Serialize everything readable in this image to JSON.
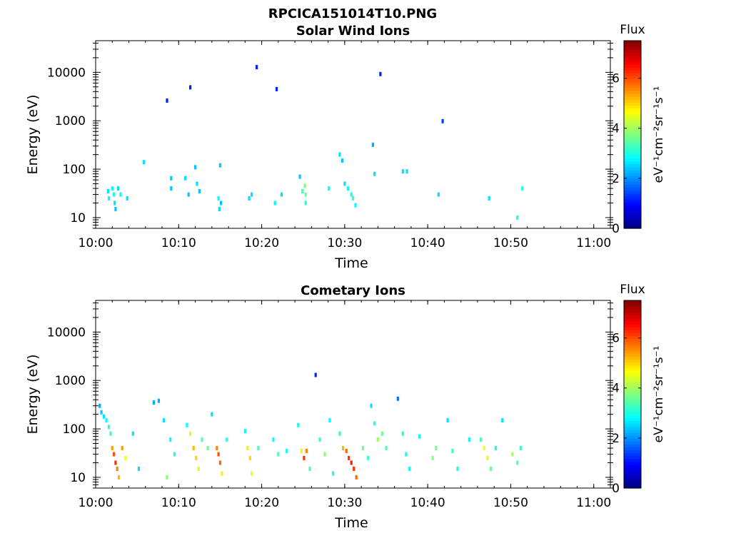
{
  "figure": {
    "title": "RPCICA151014T10.PNG"
  },
  "chart_data": [
    {
      "type": "heatmap",
      "title": "Solar Wind Ions",
      "xlabel": "Time",
      "ylabel": "Energy (eV)",
      "y_scale": "log",
      "xlim": [
        "10:00",
        "11:02"
      ],
      "ylim": [
        6,
        45000
      ],
      "x_ticks": [
        "10:00",
        "10:10",
        "10:20",
        "10:30",
        "10:40",
        "10:50",
        "11:00"
      ],
      "y_ticks": [
        10,
        100,
        1000,
        10000
      ],
      "y_tick_labels": [
        "10",
        "100",
        "1000",
        "10000"
      ],
      "colorbar": {
        "label": "eV⁻¹cm⁻²sr⁻¹s⁻¹",
        "title": "Flux",
        "range": [
          0,
          7.5
        ],
        "ticks": [
          0,
          2,
          4,
          6
        ],
        "tick_labels": [
          "0",
          "2",
          "4",
          "6"
        ],
        "colormap": "jet"
      },
      "cells": [
        [
          "10:01.5",
          35,
          2.6
        ],
        [
          "10:01.6",
          25,
          2.8
        ],
        [
          "10:02.0",
          40,
          2.8
        ],
        [
          "10:02.2",
          30,
          3.0
        ],
        [
          "10:02.3",
          20,
          2.6
        ],
        [
          "10:02.4",
          15,
          2.4
        ],
        [
          "10:02.7",
          40,
          2.6
        ],
        [
          "10:03.0",
          30,
          2.8
        ],
        [
          "10:03.8",
          25,
          2.6
        ],
        [
          "10:05.8",
          140,
          2.6
        ],
        [
          "10:08.6",
          2600,
          1.2
        ],
        [
          "10:09.1",
          65,
          2.4
        ],
        [
          "10:09.1",
          40,
          2.4
        ],
        [
          "10:10.8",
          65,
          2.6
        ],
        [
          "10:11.2",
          30,
          2.4
        ],
        [
          "10:11.4",
          4900,
          1.2
        ],
        [
          "10:12.0",
          110,
          2.4
        ],
        [
          "10:12.2",
          50,
          2.6
        ],
        [
          "10:12.5",
          35,
          2.4
        ],
        [
          "10:14.8",
          25,
          2.8
        ],
        [
          "10:14.9",
          15,
          2.6
        ],
        [
          "10:15.0",
          120,
          2.4
        ],
        [
          "10:15.1",
          20,
          2.4
        ],
        [
          "10:18.5",
          25,
          2.6
        ],
        [
          "10:18.8",
          30,
          2.6
        ],
        [
          "10:19.4",
          12800,
          1.2
        ],
        [
          "10:21.6",
          20,
          2.8
        ],
        [
          "10:21.8",
          4500,
          1.2
        ],
        [
          "10:22.4",
          30,
          2.6
        ],
        [
          "10:24.6",
          70,
          2.4
        ],
        [
          "10:24.9",
          35,
          3.4
        ],
        [
          "10:25.2",
          45,
          3.8
        ],
        [
          "10:25.3",
          30,
          3.6
        ],
        [
          "10:25.3",
          20,
          3.0
        ],
        [
          "10:28.1",
          40,
          2.8
        ],
        [
          "10:29.4",
          200,
          2.6
        ],
        [
          "10:29.7",
          150,
          2.4
        ],
        [
          "10:30.0",
          50,
          2.6
        ],
        [
          "10:30.4",
          40,
          2.8
        ],
        [
          "10:30.8",
          30,
          3.0
        ],
        [
          "10:31.0",
          25,
          3.2
        ],
        [
          "10:31.3",
          18,
          2.8
        ],
        [
          "10:33.4",
          320,
          2.2
        ],
        [
          "10:33.6",
          80,
          2.6
        ],
        [
          "10:34.3",
          9200,
          1.2
        ],
        [
          "10:37.0",
          90,
          2.6
        ],
        [
          "10:37.5",
          90,
          2.6
        ],
        [
          "10:41.3",
          30,
          2.6
        ],
        [
          "10:41.8",
          980,
          1.4
        ],
        [
          "10:47.4",
          25,
          2.6
        ],
        [
          "10:50.8",
          10,
          3.0
        ],
        [
          "10:51.4",
          40,
          3.0
        ]
      ]
    },
    {
      "type": "heatmap",
      "title": "Cometary Ions",
      "xlabel": "Time",
      "ylabel": "Energy (eV)",
      "y_scale": "log",
      "xlim": [
        "10:00",
        "11:02"
      ],
      "ylim": [
        6,
        45000
      ],
      "x_ticks": [
        "10:00",
        "10:10",
        "10:20",
        "10:30",
        "10:40",
        "10:50",
        "11:00"
      ],
      "y_ticks": [
        10,
        100,
        1000,
        10000
      ],
      "y_tick_labels": [
        "10",
        "100",
        "1000",
        "10000"
      ],
      "colorbar": {
        "label": "eV⁻¹cm⁻²sr⁻¹s⁻¹",
        "title": "Flux",
        "range": [
          0,
          7.5
        ],
        "ticks": [
          0,
          2,
          4,
          6
        ],
        "tick_labels": [
          "0",
          "2",
          "4",
          "6"
        ],
        "colormap": "jet"
      },
      "cells": [
        [
          "10:00.5",
          300,
          2.2
        ],
        [
          "10:00.7",
          220,
          2.4
        ],
        [
          "10:01.0",
          180,
          2.6
        ],
        [
          "10:01.3",
          150,
          2.8
        ],
        [
          "10:01.6",
          110,
          3.0
        ],
        [
          "10:01.8",
          80,
          3.2
        ],
        [
          "10:02.0",
          40,
          5.4
        ],
        [
          "10:02.2",
          30,
          6.0
        ],
        [
          "10:02.4",
          20,
          6.2
        ],
        [
          "10:02.6",
          15,
          5.6
        ],
        [
          "10:02.8",
          10,
          5.2
        ],
        [
          "10:03.2",
          40,
          5.4
        ],
        [
          "10:03.6",
          25,
          4.6
        ],
        [
          "10:04.5",
          80,
          2.6
        ],
        [
          "10:05.2",
          15,
          2.6
        ],
        [
          "10:07.0",
          350,
          2.2
        ],
        [
          "10:07.6",
          380,
          2.2
        ],
        [
          "10:08.2",
          150,
          2.6
        ],
        [
          "10:08.6",
          10,
          3.8
        ],
        [
          "10:09.0",
          60,
          2.8
        ],
        [
          "10:09.5",
          30,
          3.0
        ],
        [
          "10:11.0",
          120,
          2.8
        ],
        [
          "10:11.4",
          80,
          4.4
        ],
        [
          "10:11.8",
          40,
          5.2
        ],
        [
          "10:12.1",
          25,
          5.0
        ],
        [
          "10:12.4",
          15,
          4.4
        ],
        [
          "10:12.8",
          60,
          3.4
        ],
        [
          "10:13.5",
          40,
          3.6
        ],
        [
          "10:14.0",
          200,
          2.6
        ],
        [
          "10:14.6",
          40,
          5.6
        ],
        [
          "10:14.8",
          30,
          6.0
        ],
        [
          "10:15.0",
          20,
          5.8
        ],
        [
          "10:15.2",
          12,
          4.8
        ],
        [
          "10:15.8",
          60,
          3.2
        ],
        [
          "10:18.0",
          90,
          2.8
        ],
        [
          "10:18.3",
          40,
          4.8
        ],
        [
          "10:18.6",
          25,
          5.0
        ],
        [
          "10:18.8",
          12,
          4.6
        ],
        [
          "10:19.6",
          40,
          3.4
        ],
        [
          "10:21.4",
          60,
          2.8
        ],
        [
          "10:22.0",
          30,
          3.4
        ],
        [
          "10:23.0",
          35,
          3.0
        ],
        [
          "10:24.4",
          120,
          3.0
        ],
        [
          "10:24.8",
          35,
          4.8
        ],
        [
          "10:25.1",
          25,
          6.2
        ],
        [
          "10:25.4",
          35,
          5.6
        ],
        [
          "10:25.8",
          15,
          3.4
        ],
        [
          "10:27.0",
          60,
          3.2
        ],
        [
          "10:27.6",
          30,
          3.8
        ],
        [
          "10:28.2",
          150,
          2.8
        ],
        [
          "10:28.6",
          12,
          3.0
        ],
        [
          "10:29.4",
          80,
          3.2
        ],
        [
          "10:29.8",
          40,
          5.2
        ],
        [
          "10:30.2",
          35,
          5.8
        ],
        [
          "10:30.5",
          25,
          6.2
        ],
        [
          "10:30.8",
          20,
          6.4
        ],
        [
          "10:31.1",
          15,
          6.2
        ],
        [
          "10:31.4",
          10,
          5.8
        ],
        [
          "10:32.2",
          40,
          3.6
        ],
        [
          "10:32.8",
          25,
          3.2
        ],
        [
          "10:33.2",
          300,
          2.6
        ],
        [
          "10:33.6",
          130,
          3.0
        ],
        [
          "10:34.0",
          60,
          4.0
        ],
        [
          "10:34.5",
          80,
          3.6
        ],
        [
          "10:35.0",
          40,
          3.4
        ],
        [
          "10:36.4",
          420,
          1.8
        ],
        [
          "10:37.0",
          80,
          3.0
        ],
        [
          "10:37.4",
          30,
          3.0
        ],
        [
          "10:37.8",
          15,
          3.0
        ],
        [
          "10:39.0",
          70,
          2.8
        ],
        [
          "10:40.6",
          25,
          3.8
        ],
        [
          "10:41.0",
          40,
          3.6
        ],
        [
          "10:42.4",
          150,
          2.6
        ],
        [
          "10:43.0",
          35,
          3.2
        ],
        [
          "10:43.6",
          15,
          3.0
        ],
        [
          "10:45.0",
          60,
          2.8
        ],
        [
          "10:46.4",
          60,
          3.4
        ],
        [
          "10:46.8",
          40,
          4.6
        ],
        [
          "10:47.2",
          25,
          4.4
        ],
        [
          "10:47.6",
          15,
          3.6
        ],
        [
          "10:48.2",
          40,
          3.0
        ],
        [
          "10:49.0",
          150,
          2.6
        ],
        [
          "10:50.2",
          30,
          4.0
        ],
        [
          "10:50.8",
          20,
          3.4
        ],
        [
          "10:51.2",
          40,
          3.2
        ],
        [
          "10:26.5",
          1300,
          1.2
        ]
      ]
    }
  ]
}
